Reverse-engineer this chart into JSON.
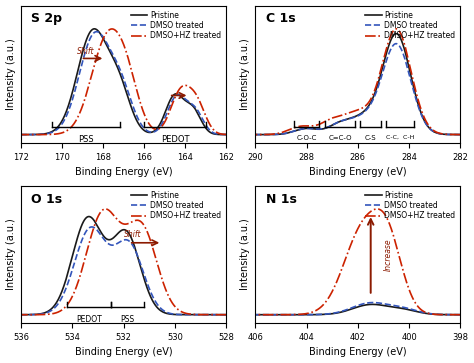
{
  "panels": [
    {
      "label": "S 2p",
      "xlabel": "Binding Energy (eV)",
      "ylabel": "Intensity (a.u.)",
      "xlim": [
        172,
        162
      ],
      "xticks": [
        172,
        170,
        168,
        166,
        164,
        162
      ]
    },
    {
      "label": "C 1s",
      "xlabel": "Binding Energy (eV)",
      "ylabel": "Intensity (a.u.)",
      "xlim": [
        290,
        282
      ],
      "xticks": [
        290,
        288,
        286,
        284,
        282
      ]
    },
    {
      "label": "O 1s",
      "xlabel": "Binding Energy (eV)",
      "ylabel": "Intensity (a.u.)",
      "xlim": [
        536,
        528
      ],
      "xticks": [
        536,
        534,
        532,
        530,
        528
      ]
    },
    {
      "label": "N 1s",
      "xlabel": "Binding Energy (eV)",
      "ylabel": "Intensity (a.u.)",
      "xlim": [
        406,
        398
      ],
      "xticks": [
        406,
        404,
        402,
        400,
        398
      ]
    }
  ],
  "line_styles": [
    {
      "color": "#1a1a1a",
      "ls": "-",
      "lw": 1.2,
      "label": "Pristine"
    },
    {
      "color": "#3355bb",
      "ls": "--",
      "lw": 1.2,
      "label": "DMSO treated"
    },
    {
      "color": "#cc2200",
      "ls": "-.",
      "lw": 1.2,
      "label": "DMSO+HZ treated"
    }
  ],
  "arrow_color": "#8B1A00",
  "label_fontsize": 9,
  "legend_fontsize": 5.5,
  "tick_fontsize": 6,
  "axis_label_fontsize": 7
}
